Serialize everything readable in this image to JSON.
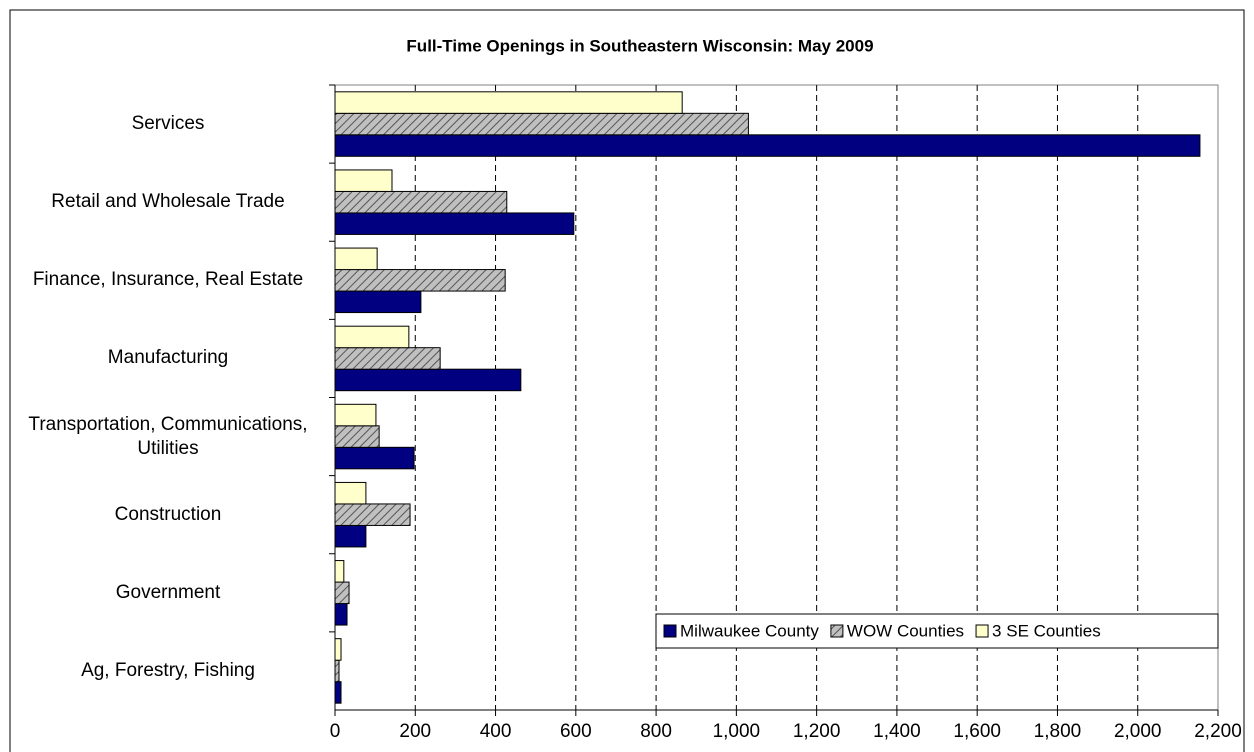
{
  "chart_data": {
    "type": "barh",
    "title": "Full-Time Openings in Southeastern Wisconsin: May 2009",
    "categories": [
      "Services",
      "Retail and Wholesale Trade",
      "Finance, Insurance, Real Estate",
      "Manufacturing",
      "Transportation, Communications, Utilities",
      "Construction",
      "Government",
      "Ag, Forestry, Fishing"
    ],
    "series": [
      {
        "name": "Milwaukee County",
        "color": "#000080",
        "values": [
          2155,
          595,
          214,
          463,
          197,
          77,
          30,
          15
        ]
      },
      {
        "name": "WOW Counties",
        "color": "#c0c0c0",
        "hatch": true,
        "values": [
          1030,
          428,
          424,
          262,
          110,
          187,
          35,
          10
        ]
      },
      {
        "name": "3 SE Counties",
        "color": "#ffffcc",
        "values": [
          865,
          142,
          105,
          184,
          102,
          77,
          22,
          15
        ]
      }
    ],
    "xlim": [
      0,
      2200
    ],
    "xticks": [
      0,
      200,
      400,
      600,
      800,
      {
        "value": 1000,
        "label": "1,000"
      },
      {
        "value": 1200,
        "label": "1,200"
      },
      {
        "value": 1400,
        "label": "1,400"
      },
      {
        "value": 1600,
        "label": "1,600"
      },
      {
        "value": 1800,
        "label": "1,800"
      },
      {
        "value": 2000,
        "label": "2,000"
      },
      {
        "value": 2200,
        "label": "2,200"
      }
    ],
    "grid": true,
    "legend": "bottom-right"
  }
}
